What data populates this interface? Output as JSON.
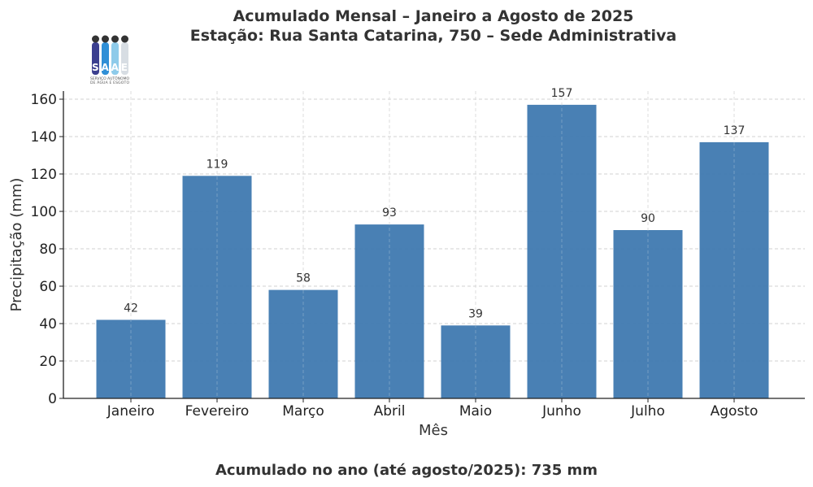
{
  "chart_data": {
    "type": "bar",
    "title": "Acumulado Mensal – Janeiro a Agosto de 2025",
    "subtitle": "Estação: Rua Santa Catarina, 750 – Sede Administrativa",
    "xlabel": "Mês",
    "ylabel": "Precipitação (mm)",
    "categories": [
      "Janeiro",
      "Fevereiro",
      "Março",
      "Abril",
      "Maio",
      "Junho",
      "Julho",
      "Agosto"
    ],
    "values": [
      42,
      119,
      58,
      93,
      39,
      157,
      90,
      137
    ],
    "ylim": [
      0,
      160
    ],
    "yticks": [
      0,
      20,
      40,
      60,
      80,
      100,
      120,
      140,
      160
    ],
    "grid": true,
    "bar_color": "#3f79b0",
    "footer": "Acumulado no ano (até agosto/2025): 735 mm"
  },
  "logo": {
    "text": "SAAE",
    "caption": "SERVIÇO AUTÔNOMO DE ÁGUA E ESGOTO"
  }
}
